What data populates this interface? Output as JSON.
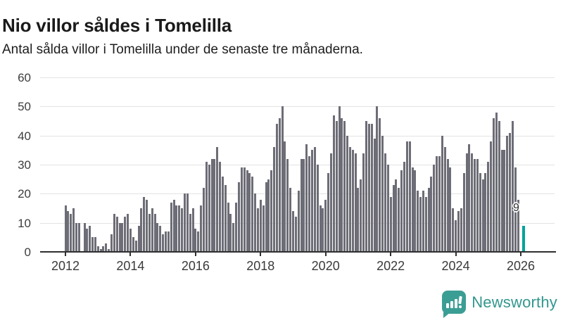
{
  "header": {
    "title": "Nio villor såldes i Tomelilla",
    "subtitle": "Antal sålda villor i Tomelilla under de senaste tre månaderna."
  },
  "annotation": {
    "last_value_label": "9"
  },
  "branding": {
    "logo_text": "Newsworthy",
    "logo_icon": "bar-chart-speech-bubble-icon"
  },
  "colors": {
    "bar": "#6d6d77",
    "highlight": "#00a39b",
    "gridline": "#e3e3e3",
    "axis": "#2e2e2e",
    "brand_teal": "#3b9e94"
  },
  "chart_data": {
    "type": "bar",
    "title": "Nio villor såldes i Tomelilla",
    "subtitle": "Antal sålda villor i Tomelilla under de senaste tre månaderna.",
    "x_start": "2012-01",
    "x_interval": "month",
    "xlabel": "",
    "ylabel": "",
    "ylim": [
      0,
      60
    ],
    "yticks": [
      0,
      10,
      20,
      30,
      40,
      50,
      60
    ],
    "xtick_years": [
      2012,
      2014,
      2016,
      2018,
      2020,
      2022,
      2024,
      2026
    ],
    "grid": "horizontal",
    "legend_position": "none",
    "highlight_last": true,
    "values": [
      16,
      14,
      13,
      15,
      10,
      10,
      0,
      10,
      8,
      9,
      5,
      5,
      2,
      1,
      2,
      3,
      1,
      6,
      13,
      12,
      10,
      10,
      12,
      13,
      8,
      5,
      4,
      9,
      15,
      19,
      18,
      13,
      15,
      13,
      10,
      9,
      6,
      7,
      7,
      17,
      18,
      16,
      16,
      15,
      20,
      20,
      13,
      15,
      8,
      7,
      16,
      22,
      31,
      30,
      32,
      32,
      36,
      31,
      26,
      23,
      17,
      13,
      10,
      17,
      24,
      29,
      29,
      28,
      27,
      26,
      20,
      15,
      18,
      16,
      24,
      25,
      28,
      36,
      44,
      46,
      50,
      38,
      32,
      22,
      14,
      12,
      21,
      32,
      32,
      37,
      33,
      35,
      36,
      30,
      16,
      15,
      18,
      27,
      34,
      47,
      45,
      50,
      46,
      45,
      40,
      36,
      35,
      34,
      22,
      25,
      34,
      45,
      44,
      44,
      39,
      50,
      46,
      40,
      34,
      30,
      19,
      23,
      25,
      22,
      28,
      31,
      38,
      38,
      29,
      28,
      21,
      19,
      21,
      19,
      22,
      26,
      30,
      33,
      33,
      40,
      36,
      32,
      29,
      15,
      11,
      14,
      15,
      27,
      34,
      37,
      34,
      32,
      32,
      27,
      25,
      27,
      31,
      38,
      46,
      48,
      45,
      35,
      35,
      40,
      41,
      45,
      29,
      18,
      9
    ]
  }
}
